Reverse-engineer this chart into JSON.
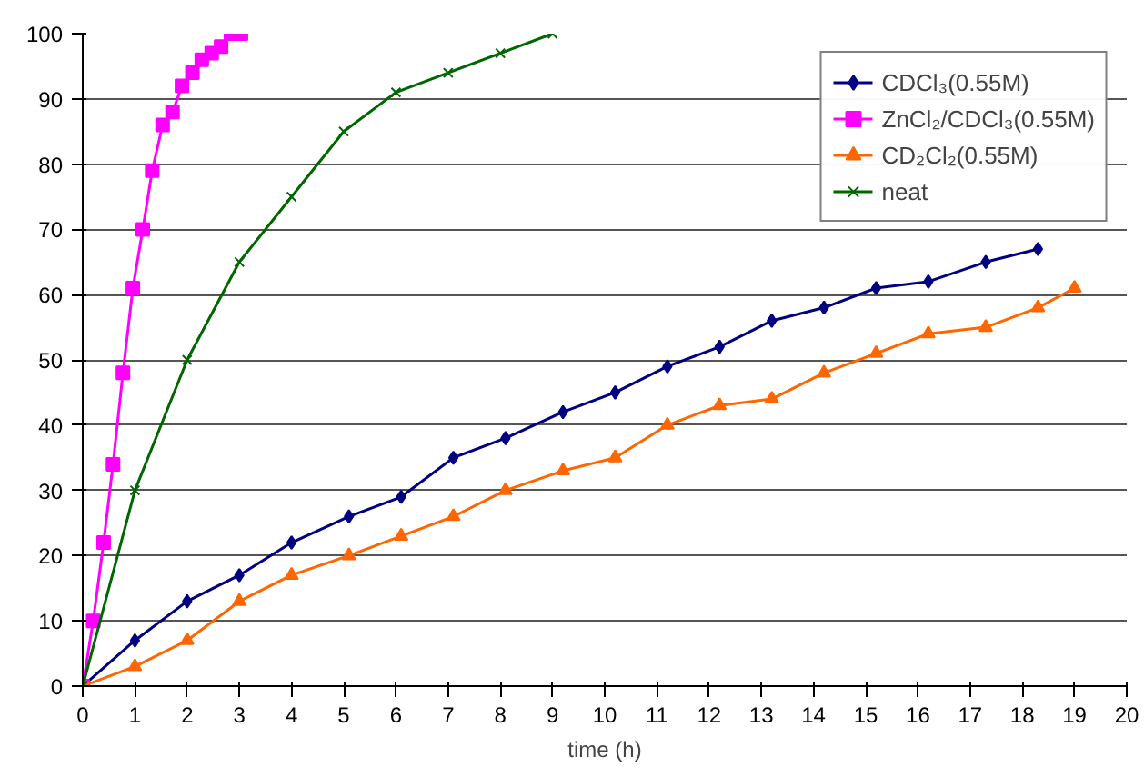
{
  "chart_data": {
    "type": "line",
    "xlabel": "time (h)",
    "xlim": [
      0,
      20
    ],
    "ylim": [
      0,
      100
    ],
    "xticks": [
      0,
      1,
      2,
      3,
      4,
      5,
      6,
      7,
      8,
      9,
      10,
      11,
      12,
      13,
      14,
      15,
      16,
      17,
      18,
      19,
      20
    ],
    "yticks": [
      0,
      10,
      20,
      30,
      40,
      50,
      60,
      70,
      80,
      90,
      100
    ],
    "grid": "y",
    "legend": "top right",
    "series": [
      {
        "name": "CDCl₃(0.55M)",
        "color": "#000080",
        "marker": "diamond",
        "x": [
          0,
          1,
          2,
          3,
          4,
          5.1,
          6.1,
          7.1,
          8.1,
          9.2,
          10.2,
          11.2,
          12.2,
          13.2,
          14.2,
          15.2,
          16.2,
          17.3,
          18.3
        ],
        "values": [
          0,
          7,
          13,
          17,
          22,
          26,
          29,
          35,
          38,
          42,
          45,
          49,
          52,
          56,
          58,
          61,
          62,
          65,
          67
        ]
      },
      {
        "name": "ZnCl₂/CDCl₃(0.55M)",
        "color": "#ff00ff",
        "marker": "square",
        "x": [
          0,
          0.2,
          0.4,
          0.58,
          0.77,
          0.96,
          1.15,
          1.33,
          1.53,
          1.72,
          1.9,
          2.1,
          2.28,
          2.47,
          2.65,
          2.84,
          3.03
        ],
        "values": [
          0,
          10,
          22,
          34,
          48,
          61,
          70,
          79,
          86,
          88,
          92,
          94,
          96,
          97,
          98,
          100,
          100
        ]
      },
      {
        "name": "CD₂Cl₂(0.55M)",
        "color": "#ff6600",
        "marker": "triangle",
        "x": [
          0,
          1,
          2,
          3,
          4,
          5.1,
          6.1,
          7.1,
          8.1,
          9.2,
          10.2,
          11.2,
          12.2,
          13.2,
          14.2,
          15.2,
          16.2,
          17.3,
          18.3,
          19.0
        ],
        "values": [
          0,
          3,
          7,
          13,
          17,
          20,
          23,
          26,
          30,
          33,
          35,
          40,
          43,
          44,
          48,
          51,
          54,
          55,
          58,
          61
        ]
      },
      {
        "name": "neat",
        "color": "#006600",
        "marker": "cross",
        "x": [
          0,
          1,
          2,
          3,
          4,
          5,
          6,
          7,
          8,
          9
        ],
        "values": [
          0,
          30,
          50,
          65,
          75,
          85,
          91,
          94,
          97,
          100
        ]
      }
    ]
  }
}
